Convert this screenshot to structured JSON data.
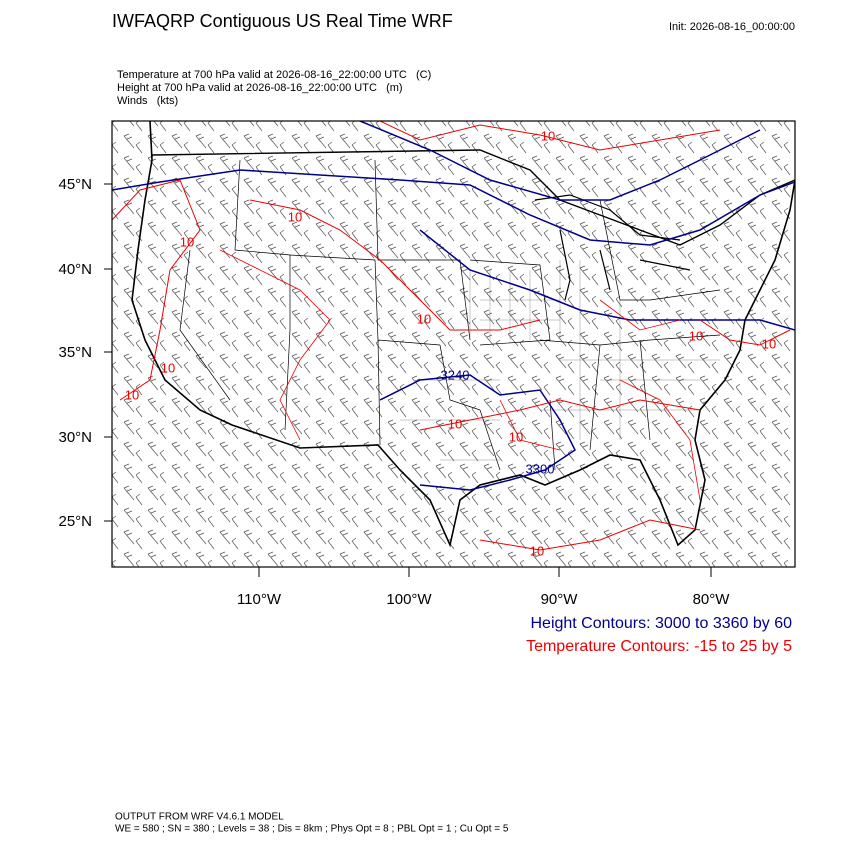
{
  "header": {
    "title": "IWFAQRP Contiguous US Real Time WRF",
    "init": "Init: 2026-08-16_00:00:00"
  },
  "fields": [
    "Temperature at 700 hPa valid at 2026-08-16_22:00:00 UTC   (C)",
    "Height at 700 hPa valid at 2026-08-16_22:00:00 UTC   (m)",
    "Winds   (kts)"
  ],
  "map": {
    "lat_labels": [
      "45°N",
      "40°N",
      "35°N",
      "30°N",
      "25°N"
    ],
    "lon_labels": [
      "110°W",
      "100°W",
      "90°W",
      "80°W"
    ],
    "height_labels": [
      "3240",
      "3300"
    ],
    "temperature_labels": [
      "10",
      "10",
      "10",
      "10",
      "10",
      "10",
      "10",
      "10",
      "10",
      "10",
      "10"
    ]
  },
  "legend": {
    "height": "Height Contours: 3000 to 3360 by 60",
    "temperature": "Temperature Contours: -15 to 25 by 5"
  },
  "footer": [
    "OUTPUT FROM WRF V4.6.1 MODEL",
    "WE = 580 ; SN = 380 ; Levels = 38 ; Dis = 8km ; Phys Opt = 8 ; PBL Opt = 1 ; Cu Opt = 5"
  ]
}
